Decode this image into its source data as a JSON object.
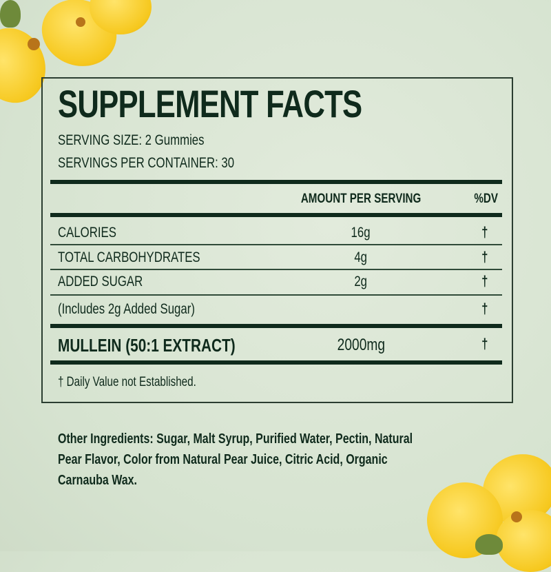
{
  "title": "SUPPLEMENT FACTS",
  "serving_size": "SERVING SIZE: 2 Gummies",
  "servings_per_container": "SERVINGS PER CONTAINER: 30",
  "header": {
    "amount": "AMOUNT PER SERVING",
    "dv": "%DV"
  },
  "rows": [
    {
      "label": "CALORIES",
      "amount": "16g",
      "dv": "†"
    },
    {
      "label": "TOTAL CARBOHYDRATES",
      "amount": "4g",
      "dv": "†"
    },
    {
      "label": "ADDED SUGAR",
      "amount": "2g",
      "dv": "†"
    },
    {
      "label": "(Includes 2g Added Sugar)",
      "amount": "",
      "dv": "†"
    }
  ],
  "main_ingredient": {
    "label": "MULLEIN (50:1 EXTRACT)",
    "amount": "2000mg",
    "dv": "†"
  },
  "footnote": "† Daily Value not Established.",
  "other_ingredients": [
    "Other Ingredients: Sugar, Malt Syrup, Purified Water, Pectin, Natural",
    "Pear Flavor, Color from Natural Pear Juice, Citric Acid, Organic",
    "Carnauba Wax."
  ],
  "colors": {
    "text": "#0f2a1c",
    "background": "#d9e5d3",
    "flower": "#f6c81e"
  },
  "decorations": [
    "mullein-flowers-top-left",
    "mullein-flowers-bottom-right"
  ]
}
